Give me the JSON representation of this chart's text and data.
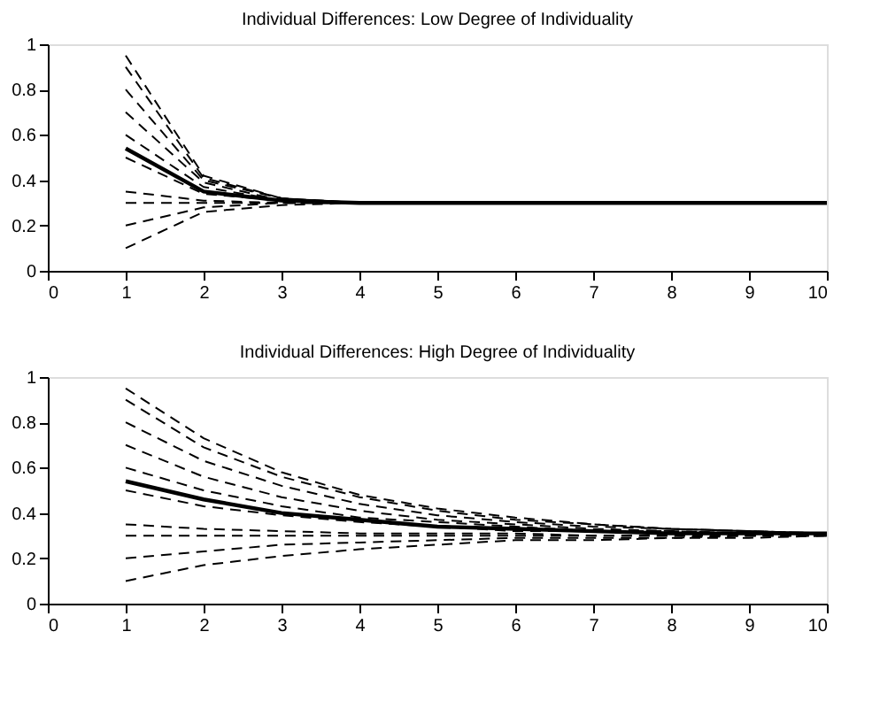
{
  "chart_data": [
    {
      "type": "line",
      "title": "Individual Differences: Low Degree of Individuality",
      "x": [
        1,
        2,
        3,
        4,
        5,
        6,
        7,
        8,
        9,
        10
      ],
      "xlim": [
        0,
        10
      ],
      "xticks": [
        0,
        1,
        2,
        3,
        4,
        5,
        6,
        7,
        8,
        9,
        10
      ],
      "ylim": [
        0,
        1
      ],
      "yticks": [
        0,
        0.2,
        0.4,
        0.6,
        0.8,
        1
      ],
      "grid": false,
      "legend": false,
      "series": [
        {
          "color": "#000000",
          "line_style": "dashed",
          "values": [
            0.95,
            0.42,
            0.32,
            0.3,
            0.3,
            0.3,
            0.3,
            0.3,
            0.3,
            0.3
          ]
        },
        {
          "color": "#000000",
          "line_style": "dashed",
          "values": [
            0.9,
            0.41,
            0.32,
            0.3,
            0.3,
            0.3,
            0.3,
            0.3,
            0.3,
            0.3
          ]
        },
        {
          "color": "#000000",
          "line_style": "dashed",
          "values": [
            0.8,
            0.4,
            0.32,
            0.3,
            0.3,
            0.3,
            0.3,
            0.3,
            0.3,
            0.3
          ]
        },
        {
          "color": "#000000",
          "line_style": "dashed",
          "values": [
            0.7,
            0.39,
            0.31,
            0.3,
            0.3,
            0.3,
            0.3,
            0.3,
            0.3,
            0.3
          ]
        },
        {
          "color": "#000000",
          "line_style": "dashed",
          "values": [
            0.6,
            0.37,
            0.31,
            0.3,
            0.3,
            0.3,
            0.3,
            0.3,
            0.3,
            0.3
          ]
        },
        {
          "color": "#000000",
          "line_style": "dashed",
          "values": [
            0.5,
            0.34,
            0.31,
            0.3,
            0.3,
            0.3,
            0.3,
            0.3,
            0.3,
            0.3
          ]
        },
        {
          "color": "#000000",
          "line_style": "dashed",
          "values": [
            0.35,
            0.31,
            0.3,
            0.3,
            0.3,
            0.3,
            0.3,
            0.3,
            0.3,
            0.3
          ]
        },
        {
          "color": "#000000",
          "line_style": "dashed",
          "values": [
            0.3,
            0.3,
            0.3,
            0.3,
            0.3,
            0.3,
            0.3,
            0.3,
            0.3,
            0.3
          ]
        },
        {
          "color": "#000000",
          "line_style": "dashed",
          "values": [
            0.2,
            0.28,
            0.3,
            0.3,
            0.3,
            0.3,
            0.3,
            0.3,
            0.3,
            0.3
          ]
        },
        {
          "color": "#000000",
          "line_style": "dashed",
          "values": [
            0.1,
            0.26,
            0.29,
            0.3,
            0.3,
            0.3,
            0.3,
            0.3,
            0.3,
            0.3
          ]
        },
        {
          "color": "#000000",
          "line_style": "solid",
          "values": [
            0.54,
            0.35,
            0.31,
            0.3,
            0.3,
            0.3,
            0.3,
            0.3,
            0.3,
            0.3
          ]
        }
      ]
    },
    {
      "type": "line",
      "title": "Individual Differences: High Degree of Individuality",
      "x": [
        1,
        2,
        3,
        4,
        5,
        6,
        7,
        8,
        9,
        10
      ],
      "xlim": [
        0,
        10
      ],
      "xticks": [
        0,
        1,
        2,
        3,
        4,
        5,
        6,
        7,
        8,
        9,
        10
      ],
      "ylim": [
        0,
        1
      ],
      "yticks": [
        0,
        0.2,
        0.4,
        0.6,
        0.8,
        1
      ],
      "grid": false,
      "legend": false,
      "series": [
        {
          "color": "#000000",
          "line_style": "dashed",
          "values": [
            0.95,
            0.73,
            0.58,
            0.48,
            0.42,
            0.38,
            0.35,
            0.33,
            0.32,
            0.31
          ]
        },
        {
          "color": "#000000",
          "line_style": "dashed",
          "values": [
            0.9,
            0.69,
            0.56,
            0.47,
            0.41,
            0.37,
            0.35,
            0.33,
            0.32,
            0.31
          ]
        },
        {
          "color": "#000000",
          "line_style": "dashed",
          "values": [
            0.8,
            0.63,
            0.52,
            0.44,
            0.39,
            0.36,
            0.34,
            0.33,
            0.32,
            0.31
          ]
        },
        {
          "color": "#000000",
          "line_style": "dashed",
          "values": [
            0.7,
            0.56,
            0.47,
            0.41,
            0.37,
            0.35,
            0.33,
            0.32,
            0.31,
            0.31
          ]
        },
        {
          "color": "#000000",
          "line_style": "dashed",
          "values": [
            0.6,
            0.5,
            0.43,
            0.38,
            0.36,
            0.34,
            0.32,
            0.32,
            0.31,
            0.31
          ]
        },
        {
          "color": "#000000",
          "line_style": "dashed",
          "values": [
            0.5,
            0.43,
            0.39,
            0.36,
            0.34,
            0.32,
            0.32,
            0.31,
            0.31,
            0.3
          ]
        },
        {
          "color": "#000000",
          "line_style": "dashed",
          "values": [
            0.35,
            0.33,
            0.32,
            0.31,
            0.31,
            0.31,
            0.3,
            0.3,
            0.3,
            0.3
          ]
        },
        {
          "color": "#000000",
          "line_style": "dashed",
          "values": [
            0.3,
            0.3,
            0.3,
            0.3,
            0.3,
            0.3,
            0.3,
            0.3,
            0.3,
            0.3
          ]
        },
        {
          "color": "#000000",
          "line_style": "dashed",
          "values": [
            0.2,
            0.23,
            0.26,
            0.27,
            0.28,
            0.29,
            0.29,
            0.29,
            0.3,
            0.3
          ]
        },
        {
          "color": "#000000",
          "line_style": "dashed",
          "values": [
            0.1,
            0.17,
            0.21,
            0.24,
            0.26,
            0.28,
            0.28,
            0.29,
            0.29,
            0.3
          ]
        },
        {
          "color": "#000000",
          "line_style": "solid",
          "values": [
            0.54,
            0.46,
            0.4,
            0.37,
            0.34,
            0.33,
            0.32,
            0.31,
            0.31,
            0.31
          ]
        }
      ]
    }
  ]
}
